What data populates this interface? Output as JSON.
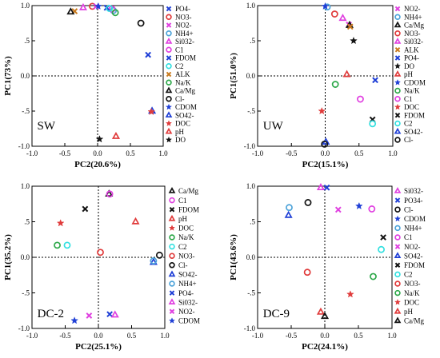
{
  "chart_data": [
    {
      "type": "scatter",
      "panel": "SW",
      "xlabel": "PC2(20.6%)",
      "ylabel": "PC1(73%)",
      "xlim": [
        -1.0,
        1.0
      ],
      "ylim": [
        -1.0,
        1.0
      ],
      "xticks": [
        "-1.0",
        "-0.5",
        "0.0",
        "0.5",
        "1.0"
      ],
      "yticks": [
        "-1.0",
        "-.5",
        "0.0",
        ".5",
        "1.0"
      ],
      "series": [
        {
          "name": "PO4-",
          "color": "#1f3fd6",
          "marker": "x",
          "values": [
            [
              0.77,
              0.3
            ]
          ]
        },
        {
          "name": "NO3-",
          "color": "#e03b3b",
          "marker": "circle",
          "values": [
            [
              -0.08,
              0.99
            ]
          ]
        },
        {
          "name": "NO2-",
          "color": "#e040e0",
          "marker": "x",
          "values": [
            [
              -0.02,
              0.99
            ]
          ]
        },
        {
          "name": "NH4+",
          "color": "#4da3d9",
          "marker": "circle",
          "values": [
            [
              0.24,
              0.93
            ]
          ]
        },
        {
          "name": "Si032-",
          "color": "#e040e0",
          "marker": "triangle",
          "values": [
            [
              -0.22,
              0.97
            ]
          ]
        },
        {
          "name": "C1",
          "color": "#e040e0",
          "marker": "circle",
          "values": [
            [
              0.22,
              0.95
            ]
          ]
        },
        {
          "name": "FDOM",
          "color": "#1f3fd6",
          "marker": "x",
          "values": [
            [
              0.14,
              0.97
            ]
          ]
        },
        {
          "name": "C2",
          "color": "#33e0e0",
          "marker": "circle",
          "values": [
            [
              0.18,
              0.96
            ]
          ]
        },
        {
          "name": "ALK",
          "color": "#c87a1e",
          "marker": "x",
          "values": [
            [
              -0.35,
              0.92
            ]
          ]
        },
        {
          "name": "Na/K",
          "color": "#2ea84a",
          "marker": "circle",
          "values": [
            [
              0.27,
              0.9
            ]
          ]
        },
        {
          "name": "Ca/Mg",
          "color": "#111111",
          "marker": "triangle",
          "values": [
            [
              -0.41,
              0.91
            ]
          ]
        },
        {
          "name": "Cl-",
          "color": "#111111",
          "marker": "circle",
          "values": [
            [
              0.66,
              0.75
            ]
          ]
        },
        {
          "name": "CDOM",
          "color": "#1f3fd6",
          "marker": "star",
          "values": [
            [
              0.01,
              0.99
            ]
          ]
        },
        {
          "name": "SO42-",
          "color": "#1f3fd6",
          "marker": "triangle",
          "values": [
            [
              0.83,
              -0.5
            ]
          ]
        },
        {
          "name": "DOC",
          "color": "#e03b3b",
          "marker": "star",
          "values": [
            [
              0.82,
              -0.51
            ]
          ]
        },
        {
          "name": "pH",
          "color": "#e03b3b",
          "marker": "triangle",
          "values": [
            [
              0.28,
              -0.86
            ]
          ]
        },
        {
          "name": "DO",
          "color": "#111111",
          "marker": "star",
          "values": [
            [
              0.03,
              -0.9
            ]
          ]
        }
      ]
    },
    {
      "type": "scatter",
      "panel": "UW",
      "xlabel": "PC2(15.1%)",
      "ylabel": "PC1(51.0%)",
      "xlim": [
        -1.0,
        1.0
      ],
      "ylim": [
        -1.0,
        1.0
      ],
      "xticks": [
        "-1.0",
        "-0.5",
        "0.0",
        "0.5",
        "1.0"
      ],
      "yticks": [
        "-1.0",
        "-.5",
        "0.0",
        ".5",
        "1.0"
      ],
      "series": [
        {
          "name": "NO2-",
          "color": "#e040e0",
          "marker": "x",
          "values": [
            [
              0.35,
              0.73
            ]
          ]
        },
        {
          "name": "NH4+",
          "color": "#4da3d9",
          "marker": "circle",
          "values": [
            [
              0.03,
              0.98
            ]
          ]
        },
        {
          "name": "Ca/Mg",
          "color": "#111111",
          "marker": "triangle",
          "values": [
            [
              0.36,
              0.72
            ]
          ]
        },
        {
          "name": "NO3-",
          "color": "#e03b3b",
          "marker": "circle",
          "values": [
            [
              0.14,
              0.88
            ]
          ]
        },
        {
          "name": "Si032-",
          "color": "#e040e0",
          "marker": "triangle",
          "values": [
            [
              0.26,
              0.82
            ]
          ]
        },
        {
          "name": "ALK",
          "color": "#c87a1e",
          "marker": "x",
          "values": [
            [
              0.37,
              0.7
            ]
          ]
        },
        {
          "name": "PO4-",
          "color": "#1f3fd6",
          "marker": "x",
          "values": [
            [
              0.74,
              -0.06
            ]
          ]
        },
        {
          "name": "DO",
          "color": "#111111",
          "marker": "star",
          "values": [
            [
              0.42,
              0.5
            ]
          ]
        },
        {
          "name": "pH",
          "color": "#e03b3b",
          "marker": "triangle",
          "values": [
            [
              0.32,
              0.02
            ]
          ]
        },
        {
          "name": "CDOM",
          "color": "#1f3fd6",
          "marker": "star",
          "values": [
            [
              0.0,
              0.99
            ]
          ]
        },
        {
          "name": "Na/K",
          "color": "#2ea84a",
          "marker": "circle",
          "values": [
            [
              0.15,
              -0.12
            ]
          ]
        },
        {
          "name": "C1",
          "color": "#e040e0",
          "marker": "circle",
          "values": [
            [
              0.52,
              -0.33
            ]
          ]
        },
        {
          "name": "DOC",
          "color": "#e03b3b",
          "marker": "star",
          "values": [
            [
              -0.05,
              -0.5
            ]
          ]
        },
        {
          "name": "FDOM",
          "color": "#111111",
          "marker": "x",
          "values": [
            [
              0.7,
              -0.62
            ]
          ]
        },
        {
          "name": "C2",
          "color": "#33e0e0",
          "marker": "circle",
          "values": [
            [
              0.7,
              -0.68
            ]
          ]
        },
        {
          "name": "SO42-",
          "color": "#1f3fd6",
          "marker": "triangle",
          "values": [
            [
              0.01,
              -0.94
            ]
          ]
        },
        {
          "name": "Cl-",
          "color": "#111111",
          "marker": "circle",
          "values": [
            [
              -0.01,
              -0.97
            ]
          ]
        }
      ]
    },
    {
      "type": "scatter",
      "panel": "DC-2",
      "xlabel": "PC2(25.1%)",
      "ylabel": "PC1(35.2%)",
      "xlim": [
        -1.0,
        1.0
      ],
      "ylim": [
        -1.0,
        1.0
      ],
      "xticks": [
        "-1.0",
        "-0.5",
        "0.0",
        "0.5",
        "1.0"
      ],
      "yticks": [
        "-1.0",
        "-.5",
        "0.0",
        ".5",
        "1.0"
      ],
      "series": [
        {
          "name": "Ca/Mg",
          "color": "#111111",
          "marker": "triangle",
          "values": [
            [
              0.16,
              0.89
            ]
          ]
        },
        {
          "name": "C1",
          "color": "#e040e0",
          "marker": "circle",
          "values": [
            [
              0.17,
              0.89
            ]
          ]
        },
        {
          "name": "FDOM",
          "color": "#111111",
          "marker": "x",
          "values": [
            [
              -0.2,
              0.68
            ]
          ]
        },
        {
          "name": "pH",
          "color": "#e03b3b",
          "marker": "triangle",
          "values": [
            [
              0.56,
              0.5
            ]
          ]
        },
        {
          "name": "DOC",
          "color": "#e03b3b",
          "marker": "star",
          "values": [
            [
              -0.57,
              0.48
            ]
          ]
        },
        {
          "name": "Na/K",
          "color": "#2ea84a",
          "marker": "circle",
          "values": [
            [
              -0.62,
              0.17
            ]
          ]
        },
        {
          "name": "C2",
          "color": "#33e0e0",
          "marker": "circle",
          "values": [
            [
              -0.47,
              0.17
            ]
          ]
        },
        {
          "name": "NO3-",
          "color": "#e03b3b",
          "marker": "circle",
          "values": [
            [
              0.03,
              0.07
            ]
          ]
        },
        {
          "name": "Cl-",
          "color": "#111111",
          "marker": "circle",
          "values": [
            [
              0.92,
              0.03
            ]
          ]
        },
        {
          "name": "SO42-",
          "color": "#1f3fd6",
          "marker": "triangle",
          "values": [
            [
              0.83,
              -0.07
            ]
          ]
        },
        {
          "name": "NH4+",
          "color": "#4da3d9",
          "marker": "circle",
          "values": [
            [
              0.83,
              -0.05
            ]
          ]
        },
        {
          "name": "PO4-",
          "color": "#1f3fd6",
          "marker": "x",
          "values": [
            [
              0.17,
              -0.8
            ]
          ]
        },
        {
          "name": "Si032-",
          "color": "#e040e0",
          "marker": "triangle",
          "values": [
            [
              0.25,
              -0.81
            ]
          ]
        },
        {
          "name": "NO2-",
          "color": "#e040e0",
          "marker": "x",
          "values": [
            [
              -0.14,
              -0.82
            ]
          ]
        },
        {
          "name": "CDOM",
          "color": "#1f3fd6",
          "marker": "star",
          "values": [
            [
              -0.36,
              -0.89
            ]
          ]
        }
      ]
    },
    {
      "type": "scatter",
      "panel": "DC-9",
      "xlabel": "PC2(24.1%)",
      "ylabel": "PC1(43.6%)",
      "xlim": [
        -1.0,
        1.0
      ],
      "ylim": [
        -1.0,
        1.0
      ],
      "xticks": [
        "-1.0",
        "-0.5",
        "0.0",
        "0.5",
        "1.0"
      ],
      "yticks": [
        "-1.0",
        "-.5",
        "0.0",
        ".5",
        "1.0"
      ],
      "series": [
        {
          "name": "Si032-",
          "color": "#e040e0",
          "marker": "triangle",
          "values": [
            [
              -0.06,
              0.98
            ]
          ]
        },
        {
          "name": "PO34-",
          "color": "#1f3fd6",
          "marker": "x",
          "values": [
            [
              0.03,
              0.98
            ]
          ]
        },
        {
          "name": "Cl-",
          "color": "#111111",
          "marker": "circle",
          "values": [
            [
              -0.25,
              0.77
            ]
          ]
        },
        {
          "name": "CDOM",
          "color": "#1f3fd6",
          "marker": "star",
          "values": [
            [
              0.51,
              0.72
            ]
          ]
        },
        {
          "name": "NH4+",
          "color": "#4da3d9",
          "marker": "circle",
          "values": [
            [
              -0.53,
              0.7
            ]
          ]
        },
        {
          "name": "C1",
          "color": "#e040e0",
          "marker": "circle",
          "values": [
            [
              0.7,
              0.68
            ]
          ]
        },
        {
          "name": "NO2-",
          "color": "#e040e0",
          "marker": "x",
          "values": [
            [
              0.2,
              0.67
            ]
          ]
        },
        {
          "name": "SO42-",
          "color": "#1f3fd6",
          "marker": "triangle",
          "values": [
            [
              -0.54,
              0.59
            ]
          ]
        },
        {
          "name": "FDOM",
          "color": "#111111",
          "marker": "x",
          "values": [
            [
              0.87,
              0.28
            ]
          ]
        },
        {
          "name": "C2",
          "color": "#33e0e0",
          "marker": "circle",
          "values": [
            [
              0.84,
              0.11
            ]
          ]
        },
        {
          "name": "NO3-",
          "color": "#e03b3b",
          "marker": "circle",
          "values": [
            [
              -0.26,
              -0.21
            ]
          ]
        },
        {
          "name": "Na/K",
          "color": "#2ea84a",
          "marker": "circle",
          "values": [
            [
              0.72,
              -0.27
            ]
          ]
        },
        {
          "name": "DOC",
          "color": "#e03b3b",
          "marker": "star",
          "values": [
            [
              0.38,
              -0.52
            ]
          ]
        },
        {
          "name": "pH",
          "color": "#e03b3b",
          "marker": "triangle",
          "values": [
            [
              -0.06,
              -0.77
            ]
          ]
        },
        {
          "name": "Ca/Mg",
          "color": "#111111",
          "marker": "triangle",
          "values": [
            [
              0.0,
              -0.83
            ]
          ]
        }
      ]
    }
  ]
}
